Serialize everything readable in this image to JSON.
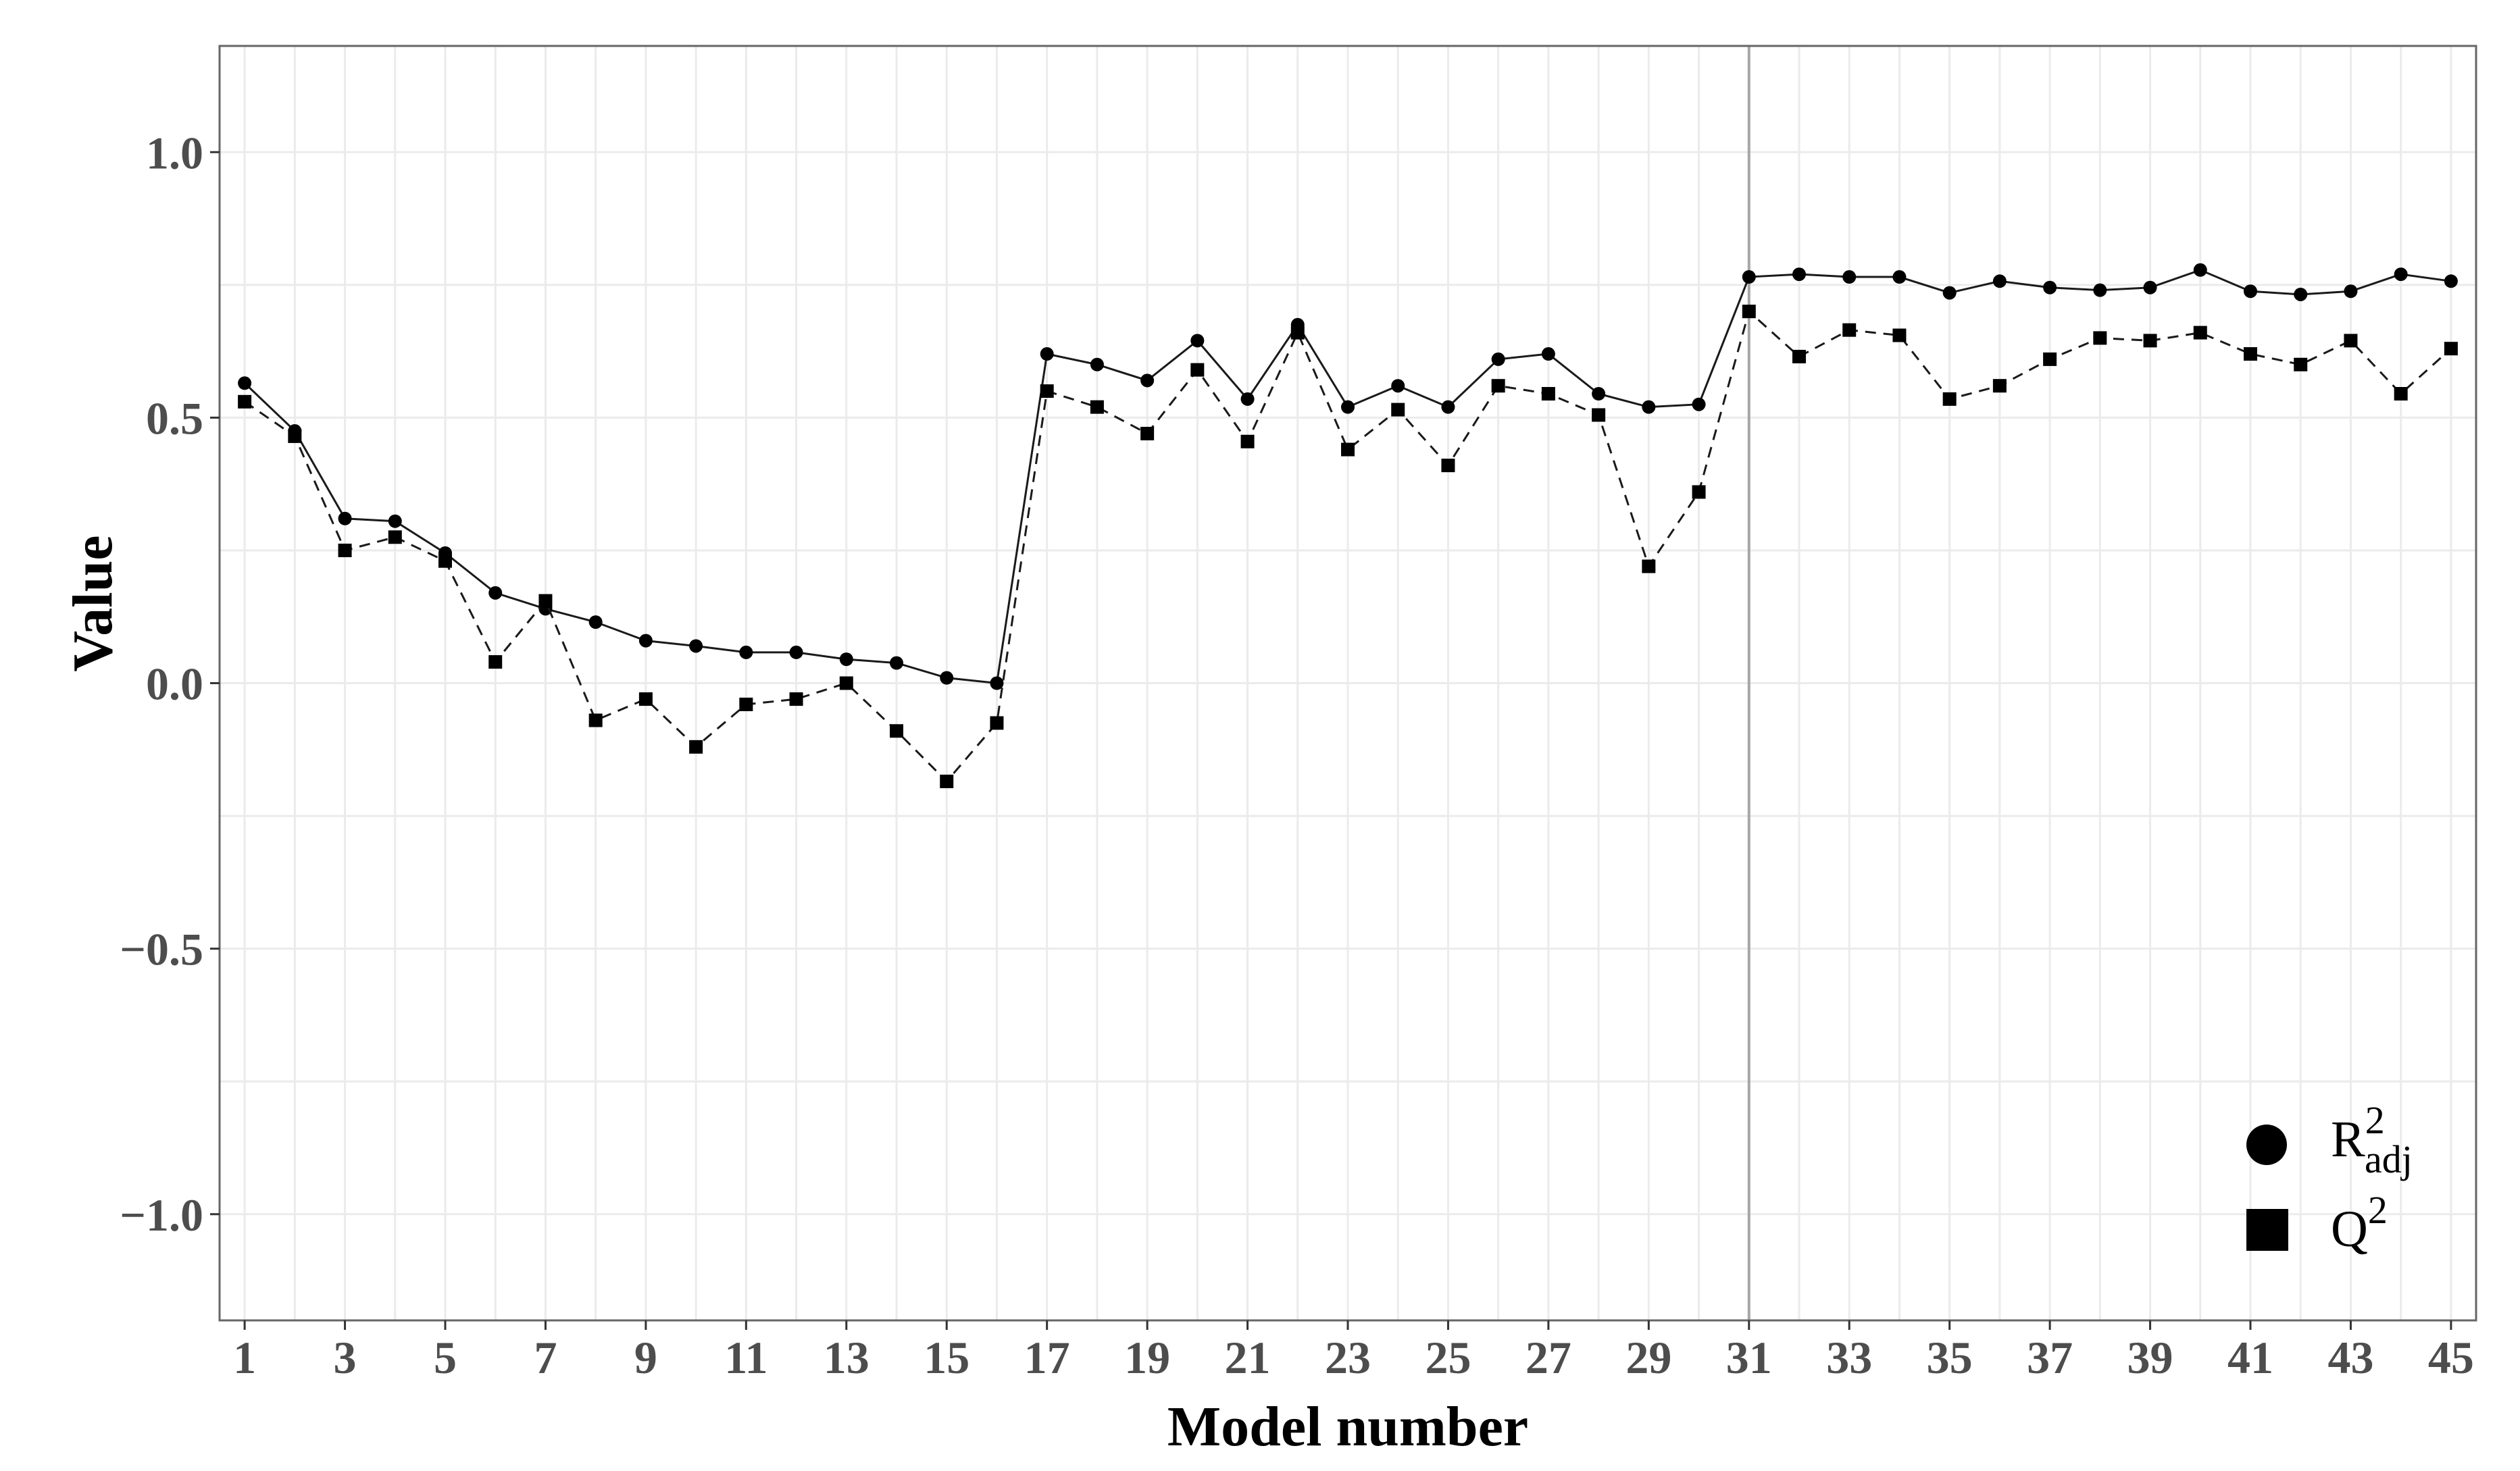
{
  "chart_data": {
    "type": "line",
    "title": "",
    "xlabel": "Model number",
    "ylabel": "Value",
    "xlim": [
      0.5,
      45.5
    ],
    "ylim": [
      -1.2,
      1.2
    ],
    "x_ticks": [
      1,
      3,
      5,
      7,
      9,
      11,
      13,
      15,
      17,
      19,
      21,
      23,
      25,
      27,
      29,
      31,
      33,
      35,
      37,
      39,
      41,
      43,
      45
    ],
    "x_tick_labels": [
      "1",
      "3",
      "5",
      "7",
      "9",
      "11",
      "13",
      "15",
      "17",
      "19",
      "21",
      "23",
      "25",
      "27",
      "29",
      "31",
      "33",
      "35",
      "37",
      "39",
      "41",
      "43",
      "45"
    ],
    "y_ticks": [
      1.0,
      0.5,
      0.0,
      -0.5,
      -1.0
    ],
    "y_tick_labels": [
      "1.0",
      "0.5",
      "0.0",
      "−0.5",
      "−1.0"
    ],
    "grid": true,
    "reference_line_x": 31,
    "legend_position": "bottom-right",
    "x": [
      1,
      2,
      3,
      4,
      5,
      6,
      7,
      8,
      9,
      10,
      11,
      12,
      13,
      14,
      15,
      16,
      17,
      18,
      19,
      20,
      21,
      22,
      23,
      24,
      25,
      26,
      27,
      28,
      29,
      30,
      31,
      32,
      33,
      34,
      35,
      36,
      37,
      38,
      39,
      40,
      41,
      42,
      43,
      44,
      45
    ],
    "series": [
      {
        "name_main": "R",
        "name_sup": "2",
        "name_sub": "adj",
        "marker": "circle",
        "line_style": "solid",
        "values": [
          0.565,
          0.475,
          0.31,
          0.305,
          0.245,
          0.17,
          0.14,
          0.115,
          0.08,
          0.07,
          0.058,
          0.058,
          0.045,
          0.038,
          0.01,
          0.0,
          0.62,
          0.6,
          0.57,
          0.645,
          0.535,
          0.675,
          0.52,
          0.56,
          0.52,
          0.61,
          0.62,
          0.545,
          0.52,
          0.525,
          0.765,
          0.77,
          0.765,
          0.765,
          0.735,
          0.757,
          0.745,
          0.74,
          0.745,
          0.778,
          0.738,
          0.732,
          0.738,
          0.77,
          0.757
        ]
      },
      {
        "name_main": "Q",
        "name_sup": "2",
        "name_sub": "",
        "marker": "square",
        "line_style": "dashed",
        "values": [
          0.53,
          0.465,
          0.25,
          0.275,
          0.23,
          0.04,
          0.155,
          -0.07,
          -0.03,
          -0.12,
          -0.04,
          -0.03,
          0.0,
          -0.09,
          -0.185,
          -0.075,
          0.55,
          0.52,
          0.47,
          0.59,
          0.455,
          0.66,
          0.44,
          0.515,
          0.41,
          0.56,
          0.545,
          0.505,
          0.22,
          0.36,
          0.7,
          0.615,
          0.665,
          0.655,
          0.535,
          0.56,
          0.61,
          0.65,
          0.645,
          0.66,
          0.62,
          0.6,
          0.645,
          0.545,
          0.63
        ]
      }
    ]
  }
}
